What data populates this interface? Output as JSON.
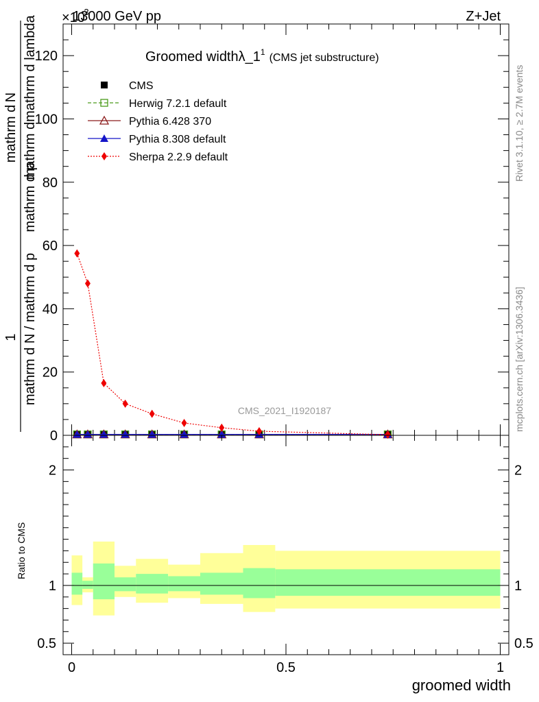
{
  "header": {
    "energy": "13000 GeV pp",
    "process": "Z+Jet",
    "exponent": "×10",
    "exponent_power": "-3",
    "rivet": "Rivet 3.1.10, ≥ 2.7M events",
    "mcplots": "mcplots.cern.ch [arXiv:1306.3436]",
    "analysis": "CMS_2021_I1920187"
  },
  "chart_data": [
    {
      "type": "line",
      "title": "Groomed widthλ_1",
      "title_sup": "1",
      "subtitle": "(CMS jet substructure)",
      "ylabel_num": "1",
      "ylabel_den_a": "mathrm d N / mathrm d p",
      "ylabel_den_b": "mathrm d p",
      "ylabel_num2": "mathrm d",
      "ylabel_num2_b": "N",
      "ylabel_right": "mathrm d lambda",
      "ylabel_mid": "mathrm d",
      "ylabel_mid2": "mathrm d",
      "ylim": [
        0,
        130
      ],
      "xlim": [
        -0.02,
        1.02
      ],
      "yticks": [
        0,
        20,
        40,
        60,
        80,
        100,
        120
      ],
      "legend_position": "top-left",
      "series": [
        {
          "name": "CMS",
          "x": [
            0.0125,
            0.0375,
            0.075,
            0.125,
            0.1875,
            0.2625,
            0.35,
            0.4375,
            0.7375
          ],
          "y": [
            0.3,
            0.3,
            0.3,
            0.3,
            0.3,
            0.3,
            0.3,
            0.3,
            0.3
          ]
        },
        {
          "name": "Herwig 7.2.1 default",
          "x": [
            0.0125,
            0.0375,
            0.075,
            0.125,
            0.1875,
            0.2625,
            0.35,
            0.4375,
            0.7375
          ],
          "y": [
            0.3,
            0.3,
            0.3,
            0.3,
            0.3,
            0.3,
            0.3,
            0.3,
            0.3
          ]
        },
        {
          "name": "Pythia 6.428 370",
          "x": [
            0.0125,
            0.0375,
            0.075,
            0.125,
            0.1875,
            0.2625,
            0.35,
            0.4375,
            0.7375
          ],
          "y": [
            0.3,
            0.3,
            0.3,
            0.3,
            0.3,
            0.3,
            0.3,
            0.3,
            0.3
          ]
        },
        {
          "name": "Pythia 8.308 default",
          "x": [
            0.0125,
            0.0375,
            0.075,
            0.125,
            0.1875,
            0.2625,
            0.35,
            0.4375,
            0.7375
          ],
          "y": [
            0.3,
            0.3,
            0.3,
            0.3,
            0.3,
            0.3,
            0.3,
            0.3,
            0.3
          ]
        },
        {
          "name": "Sherpa 2.2.9 default",
          "x": [
            0.0125,
            0.0375,
            0.075,
            0.125,
            0.1875,
            0.2625,
            0.35,
            0.4375,
            0.7375
          ],
          "y": [
            57.5,
            48.0,
            16.5,
            10.0,
            6.8,
            3.9,
            2.4,
            1.3,
            0.2
          ]
        }
      ]
    },
    {
      "type": "area",
      "ylabel": "Ratio to CMS",
      "xlabel": "groomed width",
      "ylim": [
        0.4,
        2.3
      ],
      "xlim": [
        -0.02,
        1.02
      ],
      "yticks": [
        0.5,
        1,
        2
      ],
      "ytick_labels": [
        "0.5",
        "1",
        "2"
      ],
      "xticks": [
        0,
        0.5,
        1
      ],
      "xtick_labels": [
        "0",
        "0.5",
        "1"
      ],
      "bins": [
        {
          "lo": 0.0,
          "hi": 0.025,
          "green": [
            0.92,
            1.11
          ],
          "yellow": [
            0.83,
            1.26
          ]
        },
        {
          "lo": 0.025,
          "hi": 0.05,
          "green": [
            0.97,
            1.04
          ],
          "yellow": [
            0.94,
            1.07
          ]
        },
        {
          "lo": 0.05,
          "hi": 0.1,
          "green": [
            0.88,
            1.19
          ],
          "yellow": [
            0.74,
            1.38
          ]
        },
        {
          "lo": 0.1,
          "hi": 0.15,
          "green": [
            0.95,
            1.07
          ],
          "yellow": [
            0.9,
            1.17
          ]
        },
        {
          "lo": 0.15,
          "hi": 0.225,
          "green": [
            0.93,
            1.1
          ],
          "yellow": [
            0.85,
            1.23
          ]
        },
        {
          "lo": 0.225,
          "hi": 0.3,
          "green": [
            0.95,
            1.08
          ],
          "yellow": [
            0.89,
            1.18
          ]
        },
        {
          "lo": 0.3,
          "hi": 0.4,
          "green": [
            0.92,
            1.11
          ],
          "yellow": [
            0.84,
            1.28
          ]
        },
        {
          "lo": 0.4,
          "hi": 0.475,
          "green": [
            0.89,
            1.15
          ],
          "yellow": [
            0.77,
            1.35
          ]
        },
        {
          "lo": 0.475,
          "hi": 1.0,
          "green": [
            0.91,
            1.14
          ],
          "yellow": [
            0.8,
            1.3
          ]
        }
      ],
      "reference": 1
    }
  ],
  "colors": {
    "herwig": "#4a9a1a",
    "pythia6": "#8b1a1a",
    "pythia8": "#1515c8",
    "sherpa": "#ee0000",
    "band_green": "#99ff99",
    "band_yellow": "#ffff99",
    "gray_text": "#888888"
  }
}
